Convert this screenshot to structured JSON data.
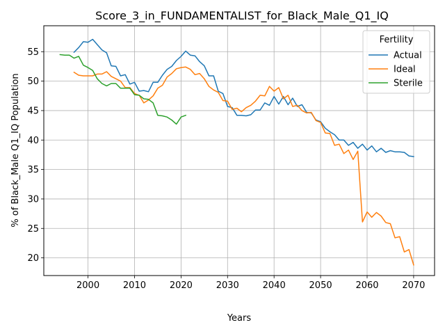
{
  "chart_data": {
    "type": "line",
    "title": "Score_3_in_FUNDAMENTALIST_for_Black_Male_Q1_IQ",
    "xlabel": "Years",
    "ylabel": "% of Black_Male Q1_IQ Population",
    "xlim": [
      1990.5,
      2074.5
    ],
    "ylim": [
      17.0,
      59.4
    ],
    "xticks": [
      2000,
      2010,
      2020,
      2030,
      2040,
      2050,
      2060,
      2070
    ],
    "yticks": [
      20,
      25,
      30,
      35,
      40,
      45,
      50,
      55
    ],
    "grid": true,
    "legend": {
      "title": "Fertility",
      "position": "top-right"
    },
    "series": [
      {
        "name": "Actual",
        "color": "#1f77b4",
        "x": [
          1997,
          1998,
          1999,
          2000,
          2001,
          2002,
          2003,
          2004,
          2005,
          2006,
          2007,
          2008,
          2009,
          2010,
          2011,
          2012,
          2013,
          2014,
          2015,
          2016,
          2017,
          2018,
          2019,
          2020,
          2021,
          2022,
          2023,
          2024,
          2025,
          2026,
          2027,
          2028,
          2029,
          2030,
          2031,
          2032,
          2033,
          2034,
          2035,
          2036,
          2037,
          2038,
          2039,
          2040,
          2041,
          2042,
          2043,
          2044,
          2045,
          2046,
          2047,
          2048,
          2049,
          2050,
          2051,
          2052,
          2053,
          2054,
          2055,
          2056,
          2057,
          2058,
          2059,
          2060,
          2061,
          2062,
          2063,
          2064,
          2065,
          2066,
          2067,
          2068,
          2069,
          2070
        ],
        "values": [
          54.9,
          55.7,
          56.7,
          56.6,
          57.1,
          56.2,
          55.3,
          54.8,
          52.6,
          52.5,
          50.9,
          51.1,
          49.5,
          49.8,
          48.3,
          48.4,
          48.2,
          49.8,
          49.8,
          51.0,
          52.0,
          52.5,
          53.5,
          54.2,
          55.1,
          54.4,
          54.3,
          53.3,
          52.6,
          50.9,
          50.9,
          48.3,
          47.9,
          45.7,
          45.5,
          44.2,
          44.2,
          44.1,
          44.3,
          45.1,
          45.1,
          46.3,
          45.9,
          47.4,
          46.1,
          47.4,
          46.0,
          47.1,
          45.7,
          46.0,
          44.7,
          44.6,
          43.4,
          43.1,
          42.0,
          41.4,
          40.9,
          40.0,
          40.0,
          39.1,
          39.6,
          38.6,
          39.3,
          38.3,
          39.0,
          38.0,
          38.6,
          37.9,
          38.2,
          38.0,
          38.0,
          37.9,
          37.3,
          37.2
        ]
      },
      {
        "name": "Ideal",
        "color": "#ff7f0e",
        "x": [
          1997,
          1998,
          1999,
          2000,
          2001,
          2002,
          2003,
          2004,
          2005,
          2006,
          2007,
          2008,
          2009,
          2010,
          2011,
          2012,
          2013,
          2014,
          2015,
          2016,
          2017,
          2018,
          2019,
          2020,
          2021,
          2022,
          2023,
          2024,
          2025,
          2026,
          2027,
          2028,
          2029,
          2030,
          2031,
          2032,
          2033,
          2034,
          2035,
          2036,
          2037,
          2038,
          2039,
          2040,
          2041,
          2042,
          2043,
          2044,
          2045,
          2046,
          2047,
          2048,
          2049,
          2050,
          2051,
          2052,
          2053,
          2054,
          2055,
          2056,
          2057,
          2058,
          2059,
          2060,
          2061,
          2062,
          2063,
          2064,
          2065,
          2066,
          2067,
          2068,
          2069,
          2070
        ],
        "values": [
          51.5,
          51.0,
          50.9,
          50.9,
          50.9,
          51.2,
          51.2,
          51.6,
          50.8,
          50.4,
          50.0,
          48.9,
          48.9,
          47.9,
          47.6,
          46.3,
          46.8,
          47.5,
          48.8,
          49.3,
          50.7,
          51.3,
          52.1,
          52.3,
          52.4,
          52.0,
          51.1,
          51.3,
          50.4,
          49.1,
          48.5,
          48.1,
          46.7,
          46.6,
          45.2,
          45.4,
          44.8,
          45.5,
          45.9,
          46.6,
          47.6,
          47.5,
          49.1,
          48.3,
          48.9,
          47.0,
          47.6,
          45.7,
          45.9,
          45.0,
          44.6,
          44.7,
          43.3,
          43.0,
          41.2,
          41.1,
          39.1,
          39.3,
          37.7,
          38.3,
          36.7,
          38.1,
          26.1,
          27.8,
          26.9,
          27.7,
          27.1,
          26.0,
          25.8,
          23.4,
          23.6,
          21.0,
          21.4,
          18.8
        ]
      },
      {
        "name": "Sterile",
        "color": "#2ca02c",
        "x": [
          1994,
          1995,
          1996,
          1997,
          1998,
          1999,
          2000,
          2001,
          2002,
          2003,
          2004,
          2005,
          2006,
          2007,
          2008,
          2009,
          2010,
          2011,
          2012,
          2013,
          2014,
          2015,
          2016,
          2017,
          2018,
          2019,
          2020,
          2021
        ],
        "values": [
          54.5,
          54.4,
          54.4,
          53.9,
          54.2,
          52.7,
          52.3,
          51.8,
          50.4,
          49.6,
          49.2,
          49.6,
          49.6,
          48.8,
          48.8,
          48.8,
          47.7,
          47.6,
          47.0,
          46.9,
          46.3,
          44.2,
          44.1,
          43.9,
          43.4,
          42.7,
          43.9,
          44.2
        ]
      }
    ]
  }
}
